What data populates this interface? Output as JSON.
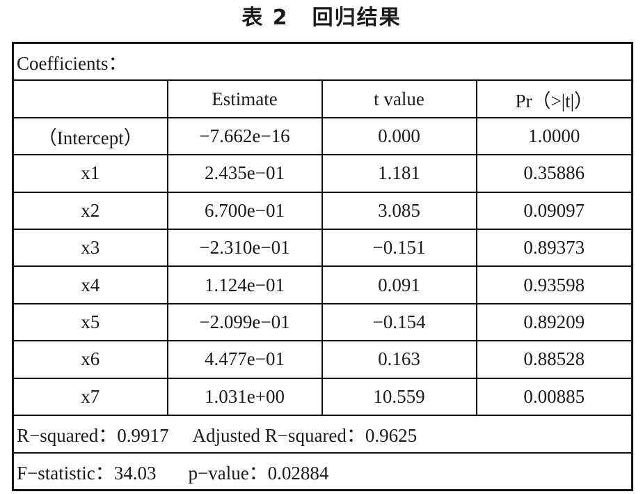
{
  "title": {
    "label": "表 2",
    "text": "回归结果"
  },
  "table": {
    "coefficients_label": "Coefficients：",
    "headers": [
      "",
      "Estimate",
      "t value",
      "Pr（>|t|）"
    ],
    "rows": [
      [
        "（Intercept）",
        "−7.662e−16",
        "0.000",
        "1.0000"
      ],
      [
        "x1",
        "2.435e−01",
        "1.181",
        "0.35886"
      ],
      [
        "x2",
        "6.700e−01",
        "3.085",
        "0.09097"
      ],
      [
        "x3",
        "−2.310e−01",
        "−0.151",
        "0.89373"
      ],
      [
        "x4",
        "1.124e−01",
        "0.091",
        "0.93598"
      ],
      [
        "x5",
        "−2.099e−01",
        "−0.154",
        "0.89209"
      ],
      [
        "x6",
        "4.477e−01",
        "0.163",
        "0.88528"
      ],
      [
        "x7",
        "1.031e+00",
        "10.559",
        "0.00885"
      ]
    ],
    "r_squared": "R−squared：0.9917",
    "adjusted_r_squared": "Adjusted R−squared：0.9625",
    "f_statistic": "F−statistic：34.03",
    "p_value": "p−value：0.02884"
  }
}
